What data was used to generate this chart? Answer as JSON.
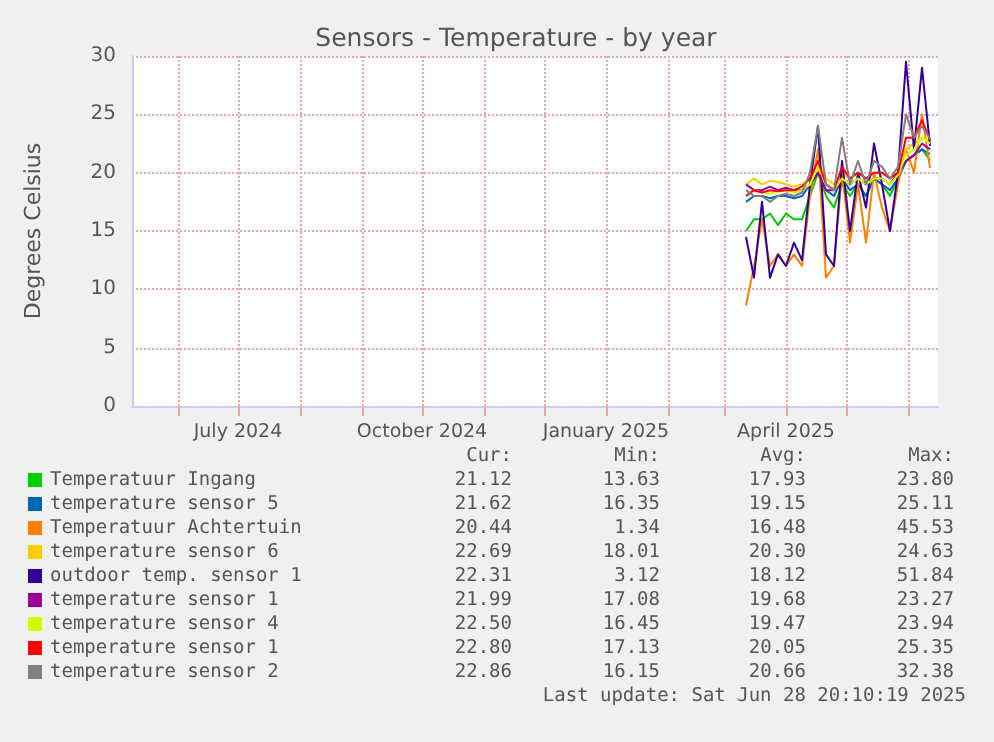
{
  "chart_data": {
    "type": "line",
    "title": "Sensors - Temperature - by year",
    "ylabel": "Degrees Celsius",
    "x": [
      "2025-03-12",
      "2025-03-16",
      "2025-03-20",
      "2025-03-24",
      "2025-03-28",
      "2025-04-01",
      "2025-04-05",
      "2025-04-09",
      "2025-04-13",
      "2025-04-17",
      "2025-04-21",
      "2025-04-25",
      "2025-04-29",
      "2025-05-03",
      "2025-05-07",
      "2025-05-11",
      "2025-05-15",
      "2025-05-19",
      "2025-05-23",
      "2025-05-27",
      "2025-05-31",
      "2025-06-04",
      "2025-06-08",
      "2025-06-12"
    ],
    "series": [
      {
        "name": "Temperatuur Ingang",
        "color": "#00cc00",
        "values": [
          15,
          16,
          16,
          16.5,
          15.5,
          16.5,
          16,
          16,
          18,
          20,
          18,
          17,
          19,
          18,
          19,
          18,
          19.5,
          19,
          18,
          19.5,
          21,
          21.5,
          22,
          21.1
        ]
      },
      {
        "name": "temperature sensor 5",
        "color": "#0066b3",
        "values": [
          17.5,
          18,
          18,
          17.8,
          18,
          18,
          17.8,
          18,
          19,
          20,
          18.5,
          18,
          19.5,
          18.5,
          19,
          18,
          19.5,
          19,
          18.5,
          19.5,
          21,
          21.5,
          22,
          21.6
        ]
      },
      {
        "name": "Temperatuur Achtertuin",
        "color": "#ff8000",
        "values": [
          8.6,
          12,
          16,
          12,
          13,
          12,
          13,
          12,
          18,
          22,
          11,
          12,
          20,
          14,
          19,
          14,
          20,
          17,
          15,
          19,
          22,
          20,
          25,
          20.4
        ]
      },
      {
        "name": "temperature sensor 6",
        "color": "#ffcc00",
        "values": [
          19,
          19.5,
          19,
          19.3,
          19.2,
          19,
          18.8,
          19,
          19.5,
          21,
          19.5,
          19,
          20,
          19.5,
          20,
          19.5,
          20,
          20,
          19.5,
          20,
          22,
          22.5,
          23,
          22.7
        ]
      },
      {
        "name": "outdoor temp. sensor 1",
        "color": "#330099",
        "values": [
          14.5,
          11,
          17.5,
          11,
          13,
          12,
          14,
          12.5,
          19,
          24,
          13,
          12,
          21,
          15,
          20,
          17,
          22.5,
          19,
          15,
          20,
          29.5,
          22,
          29,
          22.3
        ]
      },
      {
        "name": "temperature sensor 1",
        "color": "#990099",
        "values": [
          19,
          18.5,
          18.5,
          18.8,
          18.5,
          18.7,
          18.5,
          18.5,
          19,
          20,
          18.5,
          18.5,
          19.5,
          19,
          19.5,
          19,
          19.5,
          19.5,
          19,
          20,
          21,
          21.5,
          22.5,
          22
        ]
      },
      {
        "name": "temperature sensor 4",
        "color": "#ccff00",
        "values": [
          18,
          18.5,
          18.3,
          18.2,
          18.4,
          18.5,
          18.3,
          18.5,
          19,
          20.5,
          19,
          18.5,
          19.5,
          19,
          19.5,
          19,
          19.5,
          19.5,
          19,
          19.8,
          21.5,
          22,
          23,
          22.5
        ]
      },
      {
        "name": "temperature sensor 1",
        "color": "#ff0000",
        "values": [
          18,
          18.5,
          18.3,
          18.5,
          18.4,
          18.5,
          18.5,
          18.8,
          19.5,
          21,
          19,
          18.5,
          20.5,
          19.5,
          20,
          19.5,
          20,
          20,
          19.5,
          20,
          23,
          23,
          24.5,
          22.8
        ]
      },
      {
        "name": "temperature sensor 2",
        "color": "#808080",
        "values": [
          18.5,
          18,
          18,
          17.5,
          18,
          18.2,
          18,
          18.3,
          20,
          24,
          19,
          18.5,
          23,
          19,
          21,
          19,
          21,
          20.5,
          19.5,
          20.5,
          25,
          23,
          24,
          22.9
        ]
      }
    ],
    "xlim": [
      "2024-05-09",
      "2025-06-16"
    ],
    "xticks": [
      {
        "value": "2024-06-01",
        "label": null
      },
      {
        "value": "2024-07-01",
        "label": "July 2024"
      },
      {
        "value": "2024-08-01",
        "label": null
      },
      {
        "value": "2024-09-01",
        "label": null
      },
      {
        "value": "2024-10-01",
        "label": "October 2024"
      },
      {
        "value": "2024-11-01",
        "label": null
      },
      {
        "value": "2024-12-01",
        "label": null
      },
      {
        "value": "2025-01-01",
        "label": "January 2025"
      },
      {
        "value": "2025-02-01",
        "label": null
      },
      {
        "value": "2025-03-01",
        "label": null
      },
      {
        "value": "2025-04-01",
        "label": "April 2025"
      },
      {
        "value": "2025-05-01",
        "label": null
      },
      {
        "value": "2025-06-01",
        "label": null
      }
    ],
    "ylim": [
      0,
      30
    ],
    "yticks": [
      0,
      5,
      10,
      15,
      20,
      25,
      30
    ],
    "grid": true,
    "legend": "bottom",
    "marker": "none",
    "line_style": "solid",
    "annotations": [
      "Cur:",
      "Min:",
      "Avg:",
      "Max:",
      "21.12",
      "13.63",
      "17.93",
      "23.80",
      "21.62",
      "16.35",
      "19.15",
      "25.11",
      "20.44",
      "1.34",
      "16.48",
      "45.53",
      "22.69",
      "18.01",
      "20.30",
      "24.63",
      "22.31",
      "3.12",
      "18.12",
      "51.84",
      "21.99",
      "17.08",
      "19.68",
      "23.27",
      "22.50",
      "16.45",
      "19.47",
      "23.94",
      "22.80",
      "17.13",
      "20.05",
      "25.35",
      "22.86",
      "16.15",
      "20.66",
      "32.38",
      "Last update: Sat Jun 28 20:10:19 2025"
    ]
  }
}
